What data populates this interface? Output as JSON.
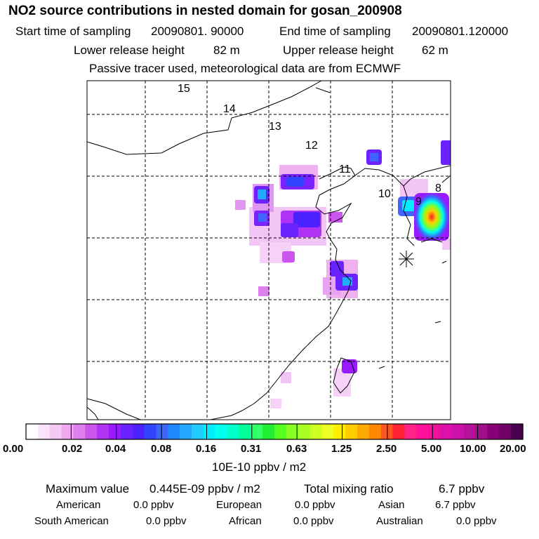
{
  "title": "NO2 source contributions in nested domain for gosan_200908",
  "sampling": {
    "start_label": "Start time of sampling",
    "start_value": "20090801. 90000",
    "end_label": "End time of sampling",
    "end_value": "20090801.120000"
  },
  "release": {
    "lower_label": "Lower release height",
    "lower_value": "82 m",
    "upper_label": "Upper release height",
    "upper_value": "62 m"
  },
  "tracer_note": "Passive tracer used, meteorological data are from ECMWF",
  "map": {
    "region_numbers": [
      "15",
      "14",
      "13",
      "12",
      "11",
      "10",
      "9",
      "8"
    ],
    "receptor": "gosan"
  },
  "colorbar": {
    "ticks": [
      "0.00",
      "0.02",
      "0.04",
      "0.08",
      "0.16",
      "0.31",
      "0.63",
      "1.25",
      "2.50",
      "5.00",
      "10.00",
      "20.00"
    ],
    "colors": [
      "#ffffff",
      "#fbe4fb",
      "#f6c8f6",
      "#f0a8f0",
      "#dd80ee",
      "#cc55ee",
      "#b033f4",
      "#9a1aff",
      "#6a22ff",
      "#4b22ff",
      "#3344ff",
      "#3d66ff",
      "#1e88ff",
      "#22aaff",
      "#22ccff",
      "#00eeff",
      "#00ffee",
      "#00ffcc",
      "#00ff99",
      "#33ff66",
      "#22ee33",
      "#55ff22",
      "#88ff22",
      "#aaff22",
      "#ccff22",
      "#eeff22",
      "#ffee00",
      "#ffcc00",
      "#ffaa00",
      "#ff8800",
      "#ff5522",
      "#ff2233",
      "#ff2288",
      "#ff1199",
      "#ee1199",
      "#dd11aa",
      "#cc11aa",
      "#b51199",
      "#a01188",
      "#880077",
      "#700066",
      "#4a0050"
    ],
    "unit": "10E-10 ppbv / m2"
  },
  "stats": {
    "max_label": "Maximum value",
    "max_value": "0.445E-09 ppbv / m2",
    "total_label": "Total mixing ratio",
    "total_value": "6.7 ppbv"
  },
  "regions": [
    {
      "name": "American",
      "value": "0.0 ppbv"
    },
    {
      "name": "European",
      "value": "0.0 ppbv"
    },
    {
      "name": "Asian",
      "value": "6.7 ppbv"
    },
    {
      "name": "South American",
      "value": "0.0 ppbv"
    },
    {
      "name": "African",
      "value": "0.0 ppbv"
    },
    {
      "name": "Australian",
      "value": "0.0 ppbv"
    }
  ]
}
